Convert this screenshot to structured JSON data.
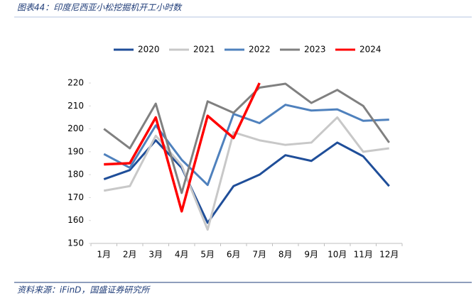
{
  "chart_data": {
    "type": "line",
    "title": "图表44：印度尼西亚小松挖掘机开工小时数",
    "source": "资料来源：iFinD，国盛证券研究所",
    "categories": [
      "1月",
      "2月",
      "3月",
      "4月",
      "5月",
      "6月",
      "7月",
      "8月",
      "9月",
      "10月",
      "11月",
      "12月"
    ],
    "series": [
      {
        "name": "2020",
        "color": "#1f4e99",
        "values": [
          178,
          182,
          195,
          183,
          159,
          175,
          180,
          188.5,
          186,
          194,
          188,
          175
        ]
      },
      {
        "name": "2021",
        "color": "#c8c8c8",
        "values": [
          173,
          175,
          197,
          184,
          156,
          198.5,
          195,
          193,
          194,
          205,
          190,
          191.5
        ]
      },
      {
        "name": "2022",
        "color": "#4f81bd",
        "values": [
          189,
          183,
          201.5,
          186.5,
          175.5,
          206.5,
          202.5,
          210.5,
          208,
          208.5,
          203.5,
          204
        ]
      },
      {
        "name": "2023",
        "color": "#808080",
        "values": [
          200,
          191.5,
          211,
          172,
          212,
          207,
          218,
          219.7,
          211.3,
          217,
          210,
          194
        ]
      },
      {
        "name": "2024",
        "color": "#ff0000",
        "values": [
          184.5,
          185,
          205,
          164,
          205.7,
          196,
          220,
          null,
          null,
          null,
          null,
          null
        ]
      }
    ],
    "ylim": [
      150,
      220
    ],
    "yticks": [
      150,
      160,
      170,
      180,
      190,
      200,
      210,
      220
    ],
    "legend": "top"
  }
}
